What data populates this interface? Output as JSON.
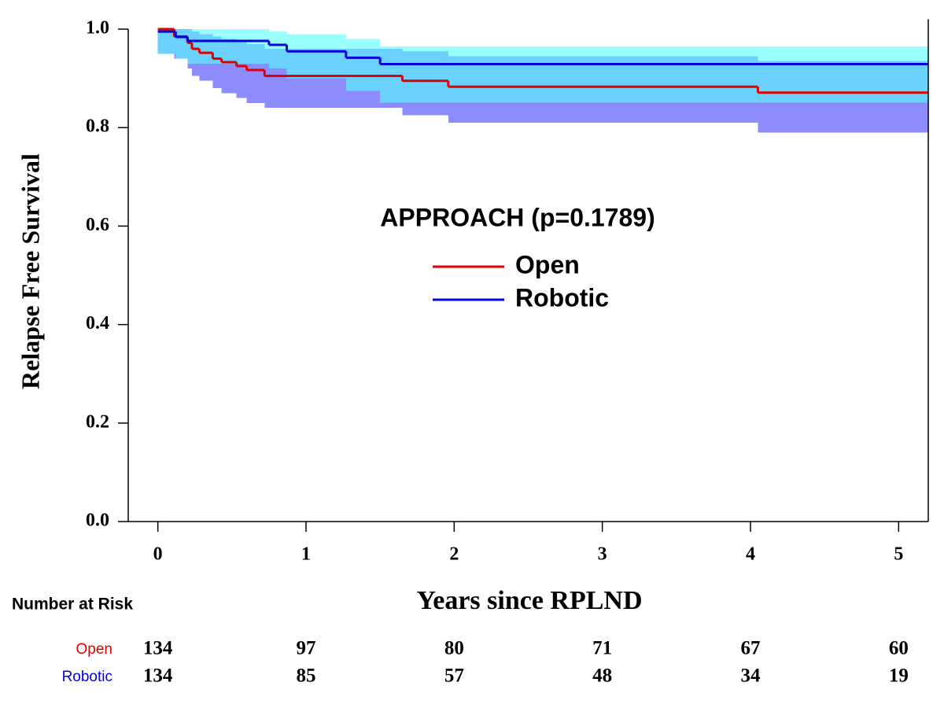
{
  "chart_data": {
    "type": "km",
    "x_label": "Years since RPLND",
    "y_label": "Relapse Free Survival",
    "legend_title": "APPROACH (p=0.1789)",
    "risk_table_title": "Number at Risk",
    "xlim": [
      -0.2,
      5.2
    ],
    "xticks": [
      0,
      1,
      2,
      3,
      4,
      5
    ],
    "ylim": [
      0,
      1.02
    ],
    "yticks": [
      {
        "value": 0,
        "label": "0.0"
      },
      {
        "value": 0.2,
        "label": "0.2"
      },
      {
        "value": 0.4,
        "label": "0.4"
      },
      {
        "value": 0.6,
        "label": "0.6"
      },
      {
        "value": 0.8,
        "label": "0.8"
      },
      {
        "value": 1,
        "label": "1.0"
      }
    ],
    "series": [
      {
        "name": "Open",
        "color": "#e00000",
        "band_color": "#8c8cff",
        "x": [
          0,
          0.11,
          0.2,
          0.23,
          0.28,
          0.37,
          0.43,
          0.53,
          0.6,
          0.72,
          1.65,
          1.96,
          4.05,
          5.2
        ],
        "values": [
          1.0,
          0.985,
          0.972,
          0.96,
          0.952,
          0.94,
          0.933,
          0.925,
          0.917,
          0.905,
          0.895,
          0.883,
          0.871,
          0.871
        ],
        "lower": [
          0.95,
          0.94,
          0.92,
          0.905,
          0.895,
          0.88,
          0.87,
          0.86,
          0.85,
          0.84,
          0.825,
          0.81,
          0.79,
          0.79
        ],
        "upper": [
          1.0,
          1.0,
          1.0,
          0.995,
          0.99,
          0.985,
          0.98,
          0.975,
          0.97,
          0.96,
          0.955,
          0.945,
          0.935,
          0.935
        ],
        "at_risk": [
          134,
          97,
          80,
          71,
          67,
          60
        ]
      },
      {
        "name": "Robotic",
        "color": "#0000e0",
        "band_color": "#55ffff",
        "x": [
          0,
          0.12,
          0.2,
          0.75,
          0.87,
          1.27,
          1.5,
          5.2
        ],
        "values": [
          0.995,
          0.984,
          0.976,
          0.968,
          0.955,
          0.942,
          0.929,
          0.929
        ],
        "lower": [
          0.95,
          0.94,
          0.93,
          0.92,
          0.9,
          0.875,
          0.851,
          0.851
        ],
        "upper": [
          1.0,
          1.0,
          1.0,
          0.995,
          0.99,
          0.98,
          0.965,
          0.965
        ],
        "at_risk": [
          134,
          85,
          57,
          48,
          34,
          19
        ]
      }
    ]
  }
}
